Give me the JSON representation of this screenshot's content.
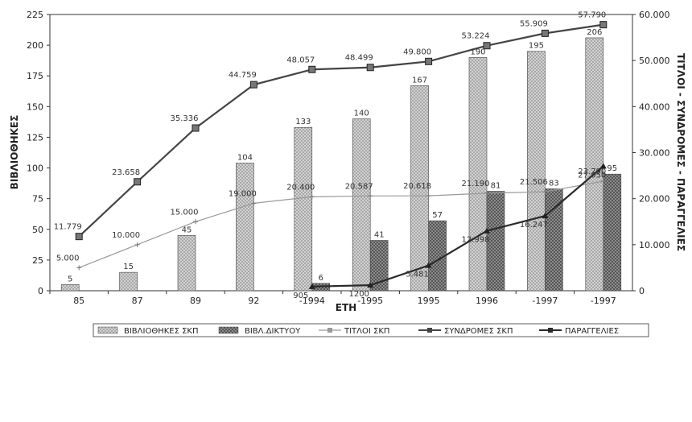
{
  "chart_data": {
    "type": "bar",
    "categories": [
      "85",
      "87",
      "89",
      "92",
      "-1994",
      "-1995",
      "1995",
      "1996",
      "-1997",
      "-1997"
    ],
    "xlabel": "ΕΤΗ",
    "ylabel": "ΒΙΒΛΙΟΘΗΚΕΣ",
    "y2label": "ΤΙΤΛΟΙ - ΣΥΝΔΡΟΜΕΣ - ΠΑΡΑΓΓΕΛΙΕΣ",
    "ylim": [
      0,
      225
    ],
    "y2lim": [
      0,
      60000
    ],
    "yticks": [
      "0",
      "25",
      "50",
      "75",
      "100",
      "125",
      "150",
      "175",
      "200",
      "225"
    ],
    "y2ticks": [
      "0",
      "10.000",
      "20.000",
      "30.000",
      "40.000",
      "50.000",
      "60.000"
    ],
    "grid": false,
    "legend_position": "bottom",
    "series": [
      {
        "name": "ΒΙΒΛΙΟΘΗΚΕΣ ΣΚΠ",
        "type": "bar",
        "axis": "left",
        "color": "#c4c4c4",
        "values": [
          5,
          15,
          45,
          104,
          133,
          140,
          167,
          190,
          195,
          206
        ],
        "labels": [
          "5",
          "15",
          "45",
          "104",
          "133",
          "140",
          "167",
          "190",
          "195",
          "206"
        ]
      },
      {
        "name": "ΒΙΒΛ.ΔΙΚΤΥΟΥ",
        "type": "bar",
        "axis": "left",
        "color": "#7a7a7a",
        "values": [
          null,
          null,
          null,
          null,
          6,
          41,
          57,
          81,
          83,
          95
        ],
        "labels": [
          "",
          "",
          "",
          "",
          "6",
          "41",
          "57",
          "81",
          "83",
          "95"
        ]
      },
      {
        "name": "ΤΙΤΛΟΙ ΣΚΠ",
        "type": "line",
        "axis": "right",
        "color": "#9a9a9a",
        "values": [
          5000,
          10000,
          15000,
          19000,
          20400,
          20587,
          20618,
          21190,
          21506,
          23790
        ],
        "labels": [
          "5.000",
          "10.000",
          "15.000",
          "19.000",
          "20.400",
          "20.587",
          "20.618",
          "21.190",
          "21.506",
          "23.790"
        ]
      },
      {
        "name": "ΣΥΝΔΡΟΜΕΣ ΣΚΠ",
        "type": "line",
        "axis": "right",
        "color": "#444444",
        "values": [
          11779,
          23658,
          35336,
          44759,
          48057,
          48499,
          49800,
          53224,
          55909,
          57790
        ],
        "labels": [
          "11.779",
          "23.658",
          "35.336",
          "44.759",
          "48.057",
          "48.499",
          "49.800",
          "53.224",
          "55.909",
          "57.790"
        ]
      },
      {
        "name": "ΠΑΡΑΓΓΕΛΙΕΣ",
        "type": "line",
        "axis": "right",
        "color": "#2a2a2a",
        "values": [
          null,
          null,
          null,
          null,
          905,
          1200,
          5481,
          12998,
          16247,
          27050
        ],
        "labels": [
          "",
          "",
          "",
          "",
          "905",
          "1200",
          "5.481",
          "12.998",
          "16.247",
          "27.050"
        ]
      }
    ]
  }
}
